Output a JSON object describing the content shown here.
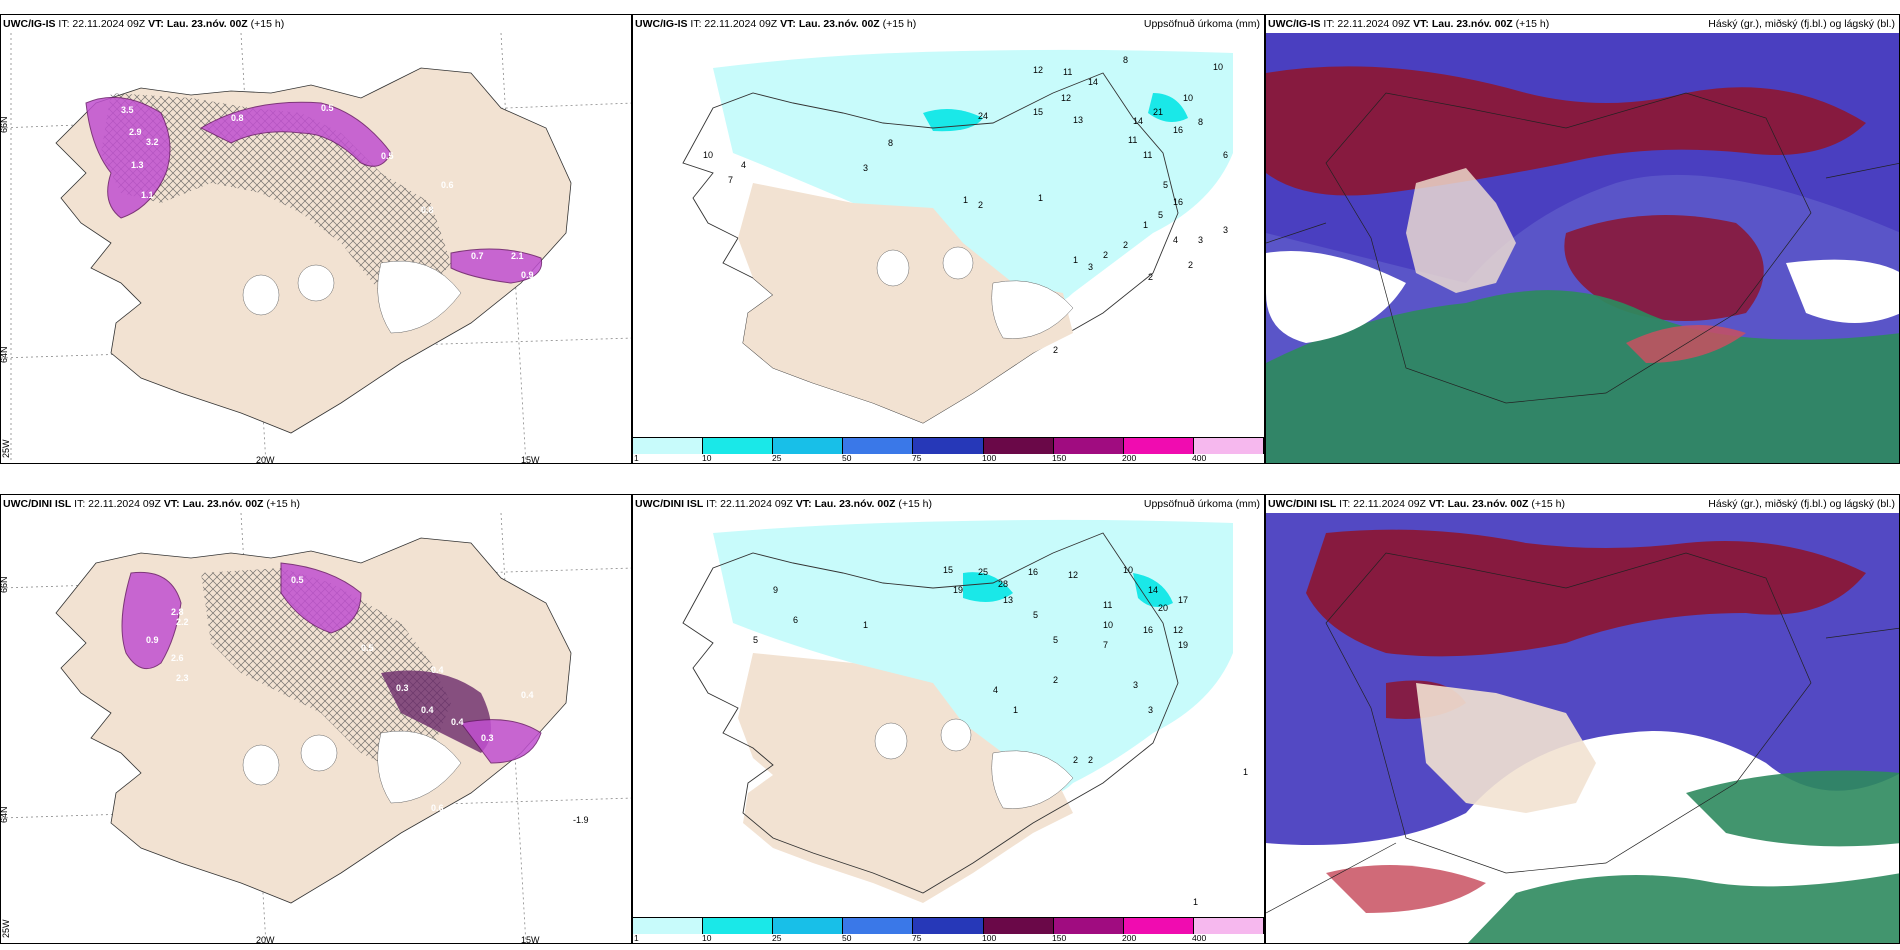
{
  "panels": {
    "tl": {
      "model": "UWC/IG-IS",
      "it": "IT: 22.11.2024 09Z",
      "vt_label": "VT:",
      "vt": "Lau. 23.nóv. 00Z",
      "lead": "(+15 h)"
    },
    "tm": {
      "model": "UWC/IG-IS",
      "it": "IT: 22.11.2024 09Z",
      "vt_label": "VT:",
      "vt": "Lau. 23.nóv. 00Z",
      "lead": "(+15 h)",
      "right": "Uppsöfnuð úrkoma (mm)"
    },
    "tr": {
      "model": "UWC/IG-IS",
      "it": "IT: 22.11.2024 09Z",
      "vt_label": "VT:",
      "vt": "Lau. 23.nóv. 00Z",
      "lead": "(+15 h)",
      "right": "Háský (gr.), miðský (fj.bl.) og lágský (bl.)"
    },
    "bl": {
      "model": "UWC/DINI ISL",
      "it": "IT: 22.11.2024 09Z",
      "vt_label": "VT:",
      "vt": "Lau. 23.nóv. 00Z",
      "lead": "(+15 h)"
    },
    "bm": {
      "model": "UWC/DINI ISL",
      "it": "IT: 22.11.2024 09Z",
      "vt_label": "VT:",
      "vt": "Lau. 23.nóv. 00Z",
      "lead": "(+15 h)",
      "right": "Uppsöfnuð úrkoma (mm)"
    },
    "br": {
      "model": "UWC/DINI ISL",
      "it": "IT: 22.11.2024 09Z",
      "vt_label": "VT:",
      "vt": "Lau. 23.nóv. 00Z",
      "lead": "(+15 h)",
      "right": "Háský (gr.), miðský (fj.bl.) og lágský (bl.)"
    }
  },
  "axes": {
    "lat66": "66N",
    "lat64": "64N",
    "lon25": "25W",
    "lon20": "20W",
    "lon15": "15W"
  },
  "colorbar": {
    "ticks": [
      "1",
      "10",
      "25",
      "50",
      "75",
      "100",
      "150",
      "200",
      "400"
    ],
    "colors": [
      "#c8fbfb",
      "#1ae8e8",
      "#18bfe8",
      "#3a78e8",
      "#2638b8",
      "#6a0848",
      "#a00c80",
      "#f00cb0",
      "#f6b8ee"
    ]
  },
  "top_left_values": [
    "3.5",
    "2.9",
    "3.2",
    "1.3",
    "1.1",
    "0.8",
    "0.5",
    "0.5",
    "0.6",
    "0.8",
    "0.7",
    "2.1",
    "0.9"
  ],
  "bottom_left_values": [
    "2.8",
    "2.2",
    "0.9",
    "2.6",
    "2.3",
    "0.5",
    "0.5",
    "0.4",
    "0.3",
    "0.4",
    "0.4",
    "0.3",
    "0.4",
    "0.6",
    "-1.9"
  ],
  "top_mid_values": [
    "12",
    "11",
    "14",
    "8",
    "10",
    "13",
    "21",
    "10",
    "24",
    "15",
    "12",
    "16",
    "8",
    "11",
    "11",
    "14",
    "10",
    "7",
    "8",
    "3",
    "4",
    "1",
    "1",
    "2",
    "3",
    "1",
    "2",
    "2",
    "1",
    "5",
    "6",
    "5",
    "4",
    "3",
    "2",
    "2",
    "16",
    "3",
    "2"
  ],
  "bottom_mid_values": [
    "15",
    "19",
    "25",
    "28",
    "13",
    "16",
    "12",
    "10",
    "14",
    "20",
    "17",
    "12",
    "16",
    "19",
    "11",
    "10",
    "7",
    "5",
    "5",
    "2",
    "4",
    "3",
    "3",
    "2",
    "2",
    "1",
    "1",
    "9",
    "6",
    "5",
    "1",
    "1"
  ]
}
